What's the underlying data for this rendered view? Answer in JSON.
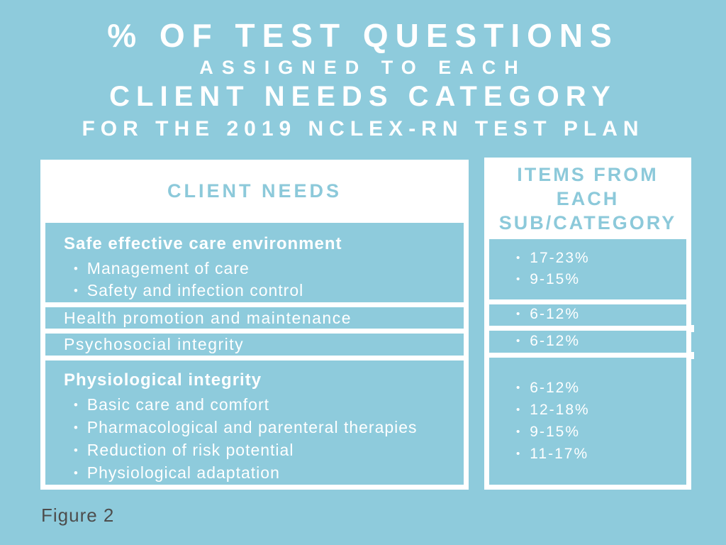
{
  "colors": {
    "background": "#8ECBDC",
    "panel_fill": "#FFFFFF",
    "accent_text": "#8CC9DA",
    "row_text": "#FFFFFF",
    "caption_text": "#4D4D4D"
  },
  "title": {
    "line1": "% OF TEST QUESTIONS",
    "line2": "ASSIGNED TO EACH",
    "line3": "CLIENT NEEDS CATEGORY",
    "line4": "FOR THE 2019 NCLEX-RN TEST PLAN"
  },
  "panels": {
    "left_header": "CLIENT NEEDS",
    "right_header_lines": [
      "ITEMS FROM",
      "EACH",
      "SUB/CATEGORY"
    ]
  },
  "figure": {
    "caption": "Figure 2"
  },
  "chart_data": {
    "type": "table",
    "title": "% of test questions assigned to each Client Needs category for the 2019 NCLEX-RN test plan",
    "columns": [
      "CLIENT NEEDS",
      "ITEMS FROM EACH SUB/CATEGORY"
    ],
    "rows": [
      {
        "category": "Safe effective care environment",
        "subcategories": [
          "Management of care",
          "Safety and infection control"
        ],
        "item_percentages": [
          "17-23%",
          "9-15%"
        ]
      },
      {
        "category": "Health promotion and maintenance",
        "subcategories": [],
        "item_percentages": [
          "6-12%"
        ]
      },
      {
        "category": "Psychosocial integrity",
        "subcategories": [],
        "item_percentages": [
          "6-12%"
        ]
      },
      {
        "category": "Physiological integrity",
        "subcategories": [
          "Basic care and comfort",
          "Pharmacological and parenteral therapies",
          "Reduction of risk potential",
          "Physiological adaptation"
        ],
        "item_percentages": [
          "6-12%",
          "12-18%",
          "9-15%",
          "11-17%"
        ]
      }
    ]
  }
}
